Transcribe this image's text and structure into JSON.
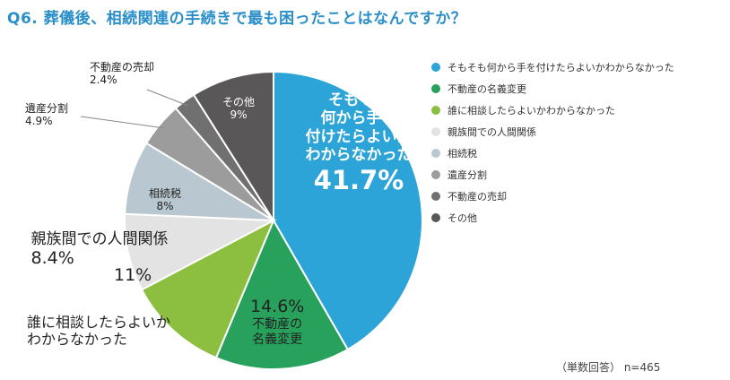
{
  "title": "Q6. 葬儀後、相続関連の手続きで最も困ったことはなんですか？",
  "note": "（単数回答） n=465",
  "chart_data": {
    "type": "pie",
    "title": "Q6. 葬儀後、相続関連の手続きで最も困ったことはなんですか？",
    "start_angle_deg": 0,
    "direction": "clockwise",
    "slices": [
      {
        "name": "そもそも何から手を付けたらよいかわからなかった",
        "label_lines": [
          "そもそも",
          "何から手を",
          "付けたらよいか",
          "わからなかった"
        ],
        "pct_label": "41.7%",
        "value": 41.7,
        "color": "#2ca4d7"
      },
      {
        "name": "不動産の名義変更",
        "label_lines": [
          "不動産の",
          "名義変更"
        ],
        "pct_label": "14.6%",
        "value": 14.6,
        "color": "#27a15b"
      },
      {
        "name": "誰に相談したらよいかわからなかった",
        "label_lines": [
          "誰に相談したらよいか",
          "わからなかった"
        ],
        "pct_label": "11%",
        "value": 11,
        "color": "#8cbf3f"
      },
      {
        "name": "親族間での人間関係",
        "label_lines": [
          "親族間での人間関係"
        ],
        "pct_label": "8.4%",
        "value": 8.4,
        "color": "#e3e3e3"
      },
      {
        "name": "相続税",
        "label_lines": [
          "相続税"
        ],
        "pct_label": "8%",
        "value": 8,
        "color": "#b9c8d0"
      },
      {
        "name": "遺産分割",
        "label_lines": [
          "遺産分割"
        ],
        "pct_label": "4.9%",
        "value": 4.9,
        "color": "#9c9c9c"
      },
      {
        "name": "不動産の売却",
        "label_lines": [
          "不動産の売却"
        ],
        "pct_label": "2.4%",
        "value": 2.4,
        "color": "#707070"
      },
      {
        "name": "その他",
        "label_lines": [
          "その他"
        ],
        "pct_label": "9%",
        "value": 9,
        "color": "#595758"
      }
    ],
    "legend_position": "right"
  }
}
